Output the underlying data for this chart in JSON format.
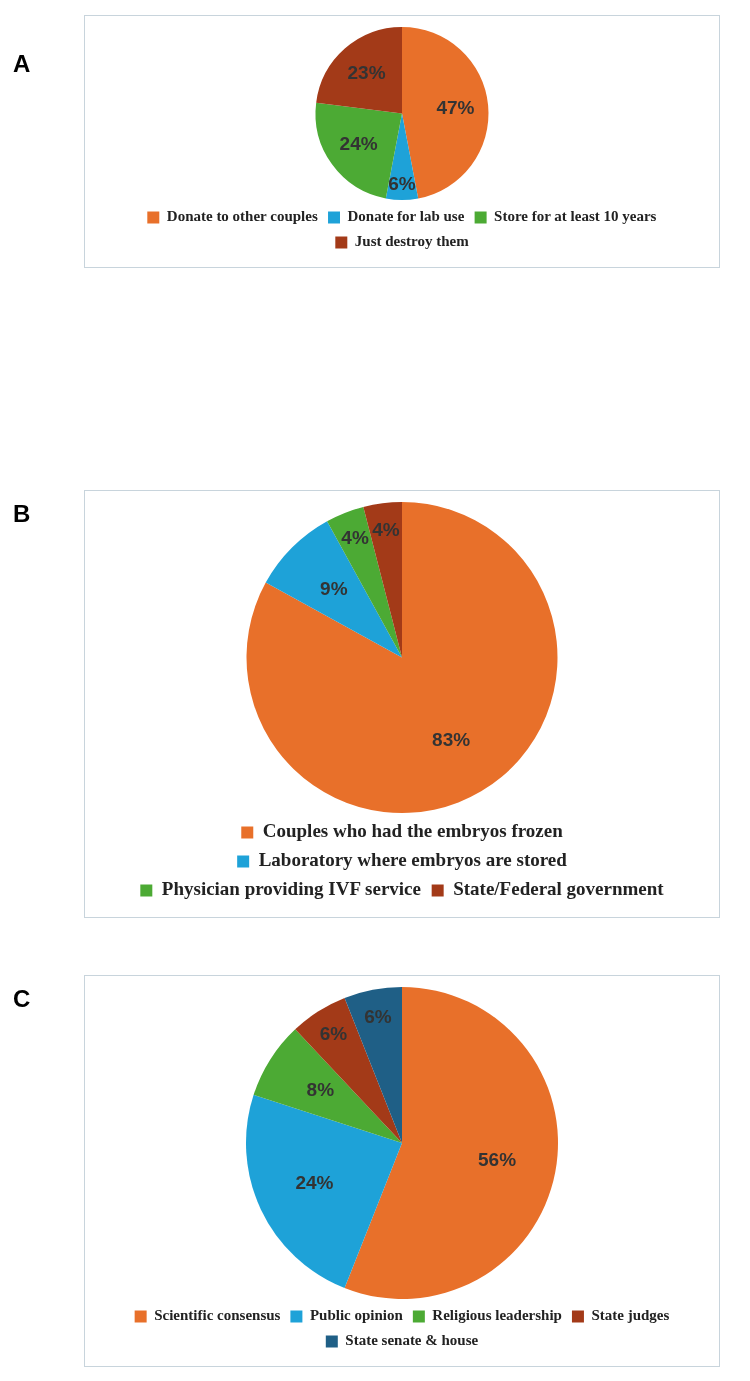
{
  "chart_data": [
    {
      "type": "pie",
      "title": "A",
      "categories": [
        "Donate to other couples",
        "Donate for lab use",
        "Store for at least 10 years",
        "Just destroy them"
      ],
      "values": [
        47,
        6,
        24,
        23
      ],
      "colors": [
        "#e8702a",
        "#1ea2d8",
        "#4caa34",
        "#a33a18"
      ],
      "value_labels": [
        "47%",
        "6%",
        "24%",
        "23%"
      ],
      "legend": "bottom"
    },
    {
      "type": "pie",
      "title": "B",
      "categories": [
        "Couples who had the embryos frozen",
        "Laboratory where embryos are stored",
        "Physician providing IVF service",
        "State/Federal government"
      ],
      "values": [
        83,
        9,
        4,
        4
      ],
      "colors": [
        "#e8702a",
        "#1ea2d8",
        "#4caa34",
        "#a33a18"
      ],
      "value_labels": [
        "83%",
        "9%",
        "4%",
        "4%"
      ],
      "legend": "bottom"
    },
    {
      "type": "pie",
      "title": "C",
      "categories": [
        "Scientific consensus",
        "Public opinion",
        "Religious leadership",
        "State judges",
        "State senate & house"
      ],
      "values": [
        56,
        24,
        8,
        6,
        6
      ],
      "colors": [
        "#e8702a",
        "#1ea2d8",
        "#4caa34",
        "#a33a18",
        "#1f5f86"
      ],
      "value_labels": [
        "56%",
        "24%",
        "8%",
        "6%",
        "6%"
      ],
      "legend": "bottom"
    }
  ]
}
